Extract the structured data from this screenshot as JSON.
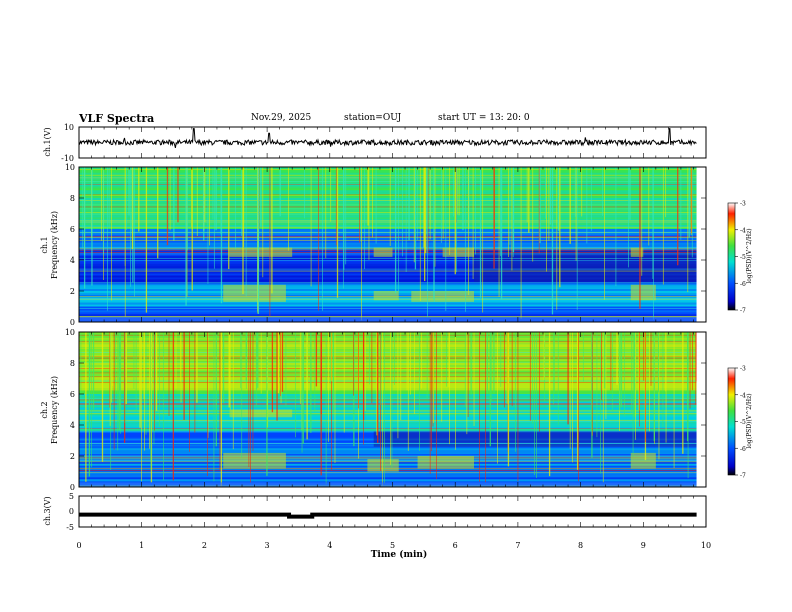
{
  "header": {
    "title": "VLF Spectra",
    "date": "Nov.29, 2025",
    "station": "station=OUJ",
    "start": "start  UT =  13: 20: 0"
  },
  "chart_data": [
    {
      "type": "line",
      "panel": "ch.1 waveform",
      "ylabel": "ch.1(V)",
      "ylim": [
        -10,
        10
      ],
      "yticks": [
        10,
        -10
      ],
      "xlim": [
        0,
        10
      ],
      "description_value": "noisy trace around 0 V with spikes near 1.8, 3.0 and 9.4 min"
    },
    {
      "type": "heatmap",
      "panel": "ch.1 spectrogram",
      "ylabel_line1": "ch.1",
      "ylabel_line2": "Frequency (kHz)",
      "ylim": [
        0,
        10
      ],
      "yticks": [
        0,
        2,
        4,
        6,
        8,
        10
      ],
      "xlim": [
        0,
        10
      ],
      "colorbar": {
        "label": "log(PSD)(V^2/Hz)",
        "range": [
          -7,
          -3
        ],
        "ticks": [
          -3,
          -4,
          -5,
          -6,
          -7
        ]
      }
    },
    {
      "type": "heatmap",
      "panel": "ch.2 spectrogram",
      "ylabel_line1": "ch.2",
      "ylabel_line2": "Frequency (kHz)",
      "ylim": [
        0,
        10
      ],
      "yticks": [
        0,
        2,
        4,
        6,
        8,
        10
      ],
      "xlim": [
        0,
        10
      ],
      "colorbar": {
        "label": "log(PSD)(V^2/Hz)",
        "range": [
          -7,
          -3
        ],
        "ticks": [
          -3,
          -4,
          -5,
          -6,
          -7
        ]
      }
    },
    {
      "type": "line",
      "panel": "ch.3 waveform",
      "ylabel": "ch.3(V)",
      "ylim": [
        -5,
        5
      ],
      "yticks": [
        5,
        0,
        -5
      ],
      "xlim": [
        0,
        10
      ],
      "level": -1,
      "xlabel": "Time (min)",
      "xticks": [
        0,
        1,
        2,
        3,
        4,
        5,
        6,
        7,
        8,
        9,
        10
      ]
    }
  ]
}
